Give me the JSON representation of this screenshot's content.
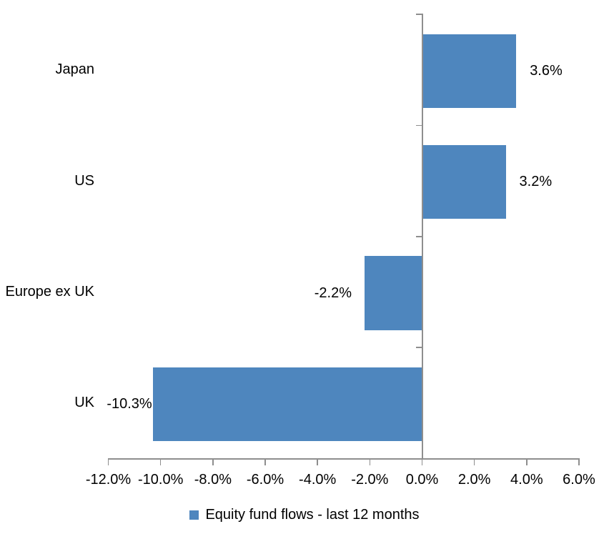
{
  "chart_data": {
    "type": "bar",
    "orientation": "horizontal",
    "title": "",
    "categories": [
      "Japan",
      "US",
      "Europe ex UK",
      "UK"
    ],
    "values": [
      3.6,
      3.2,
      -2.2,
      -10.3
    ],
    "data_labels": [
      "3.6%",
      "3.2%",
      "-2.2%",
      "-10.3%"
    ],
    "series_name": "Equity fund flows - last 12 months",
    "xlim": [
      -12,
      6
    ],
    "x_tick_step": 2,
    "x_tick_labels": [
      "-12.0%",
      "-10.0%",
      "-8.0%",
      "-6.0%",
      "-4.0%",
      "-2.0%",
      "0.0%",
      "2.0%",
      "4.0%",
      "6.0%"
    ],
    "grid": false,
    "legend_position": "bottom",
    "bar_color": "#4E86BE",
    "axis_color": "#8E8E8E",
    "text_color": "#000000"
  }
}
